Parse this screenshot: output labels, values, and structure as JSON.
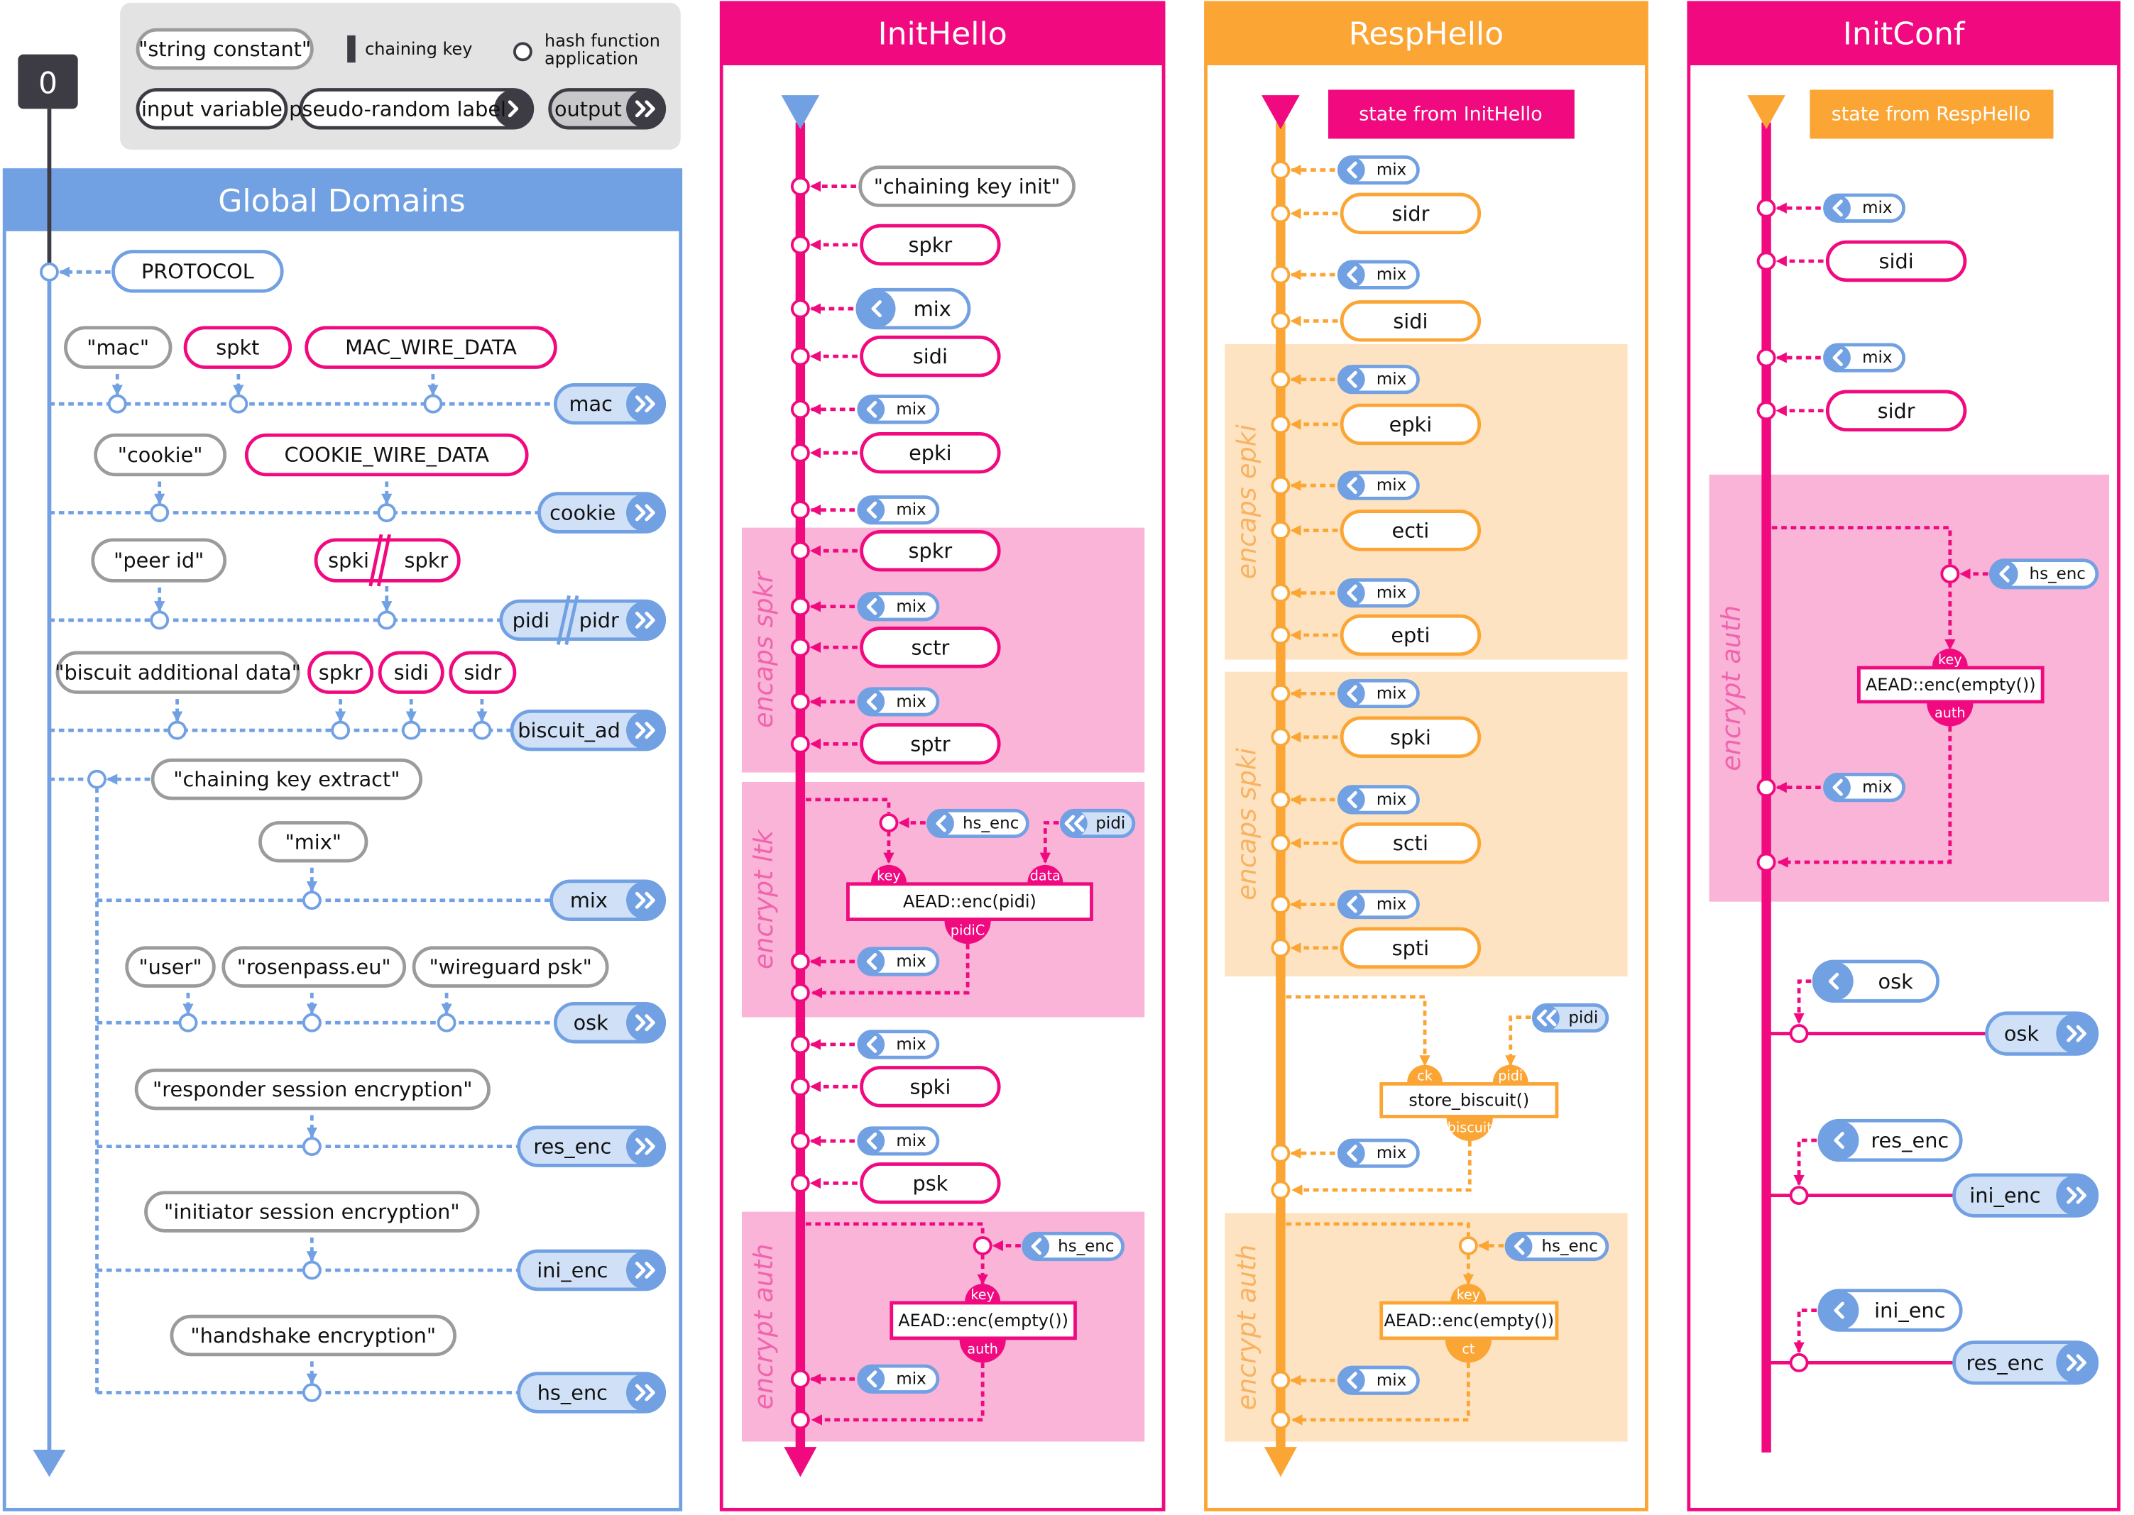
{
  "colors": {
    "global": "#71a0e3",
    "global_light": "#cfe0f7",
    "init": "#f0097f",
    "init_band": "#f9b4d8",
    "init_band_text": "#f064ae",
    "resp": "#fba535",
    "resp_band": "#fde3c1",
    "resp_band_text": "#f8b260",
    "constant": "#9b9b9b",
    "dark": "#3d3c44",
    "legend_bg": "#e3e3e4"
  },
  "legend": {
    "string_constant": "\"string constant\"",
    "chaining_key": "chaining key",
    "hash_line1": "hash function",
    "hash_line2": "application",
    "input_variable": "input variable",
    "pseudo_random_label": "pseudo-random label",
    "output": "output"
  },
  "step_badge": "0",
  "global": {
    "title": "Global Domains",
    "protocol": "PROTOCOL",
    "rows": [
      {
        "inputs": [
          "\"mac\"",
          "spkt",
          "MAC_WIRE_DATA"
        ],
        "output": "mac"
      },
      {
        "inputs": [
          "\"cookie\"",
          "COOKIE_WIRE_DATA"
        ],
        "output": "cookie"
      },
      {
        "inputs": [
          "\"peer id\"",
          [
            "spki",
            "spkr"
          ]
        ],
        "output": [
          "pidi",
          "pidr"
        ]
      },
      {
        "inputs": [
          "\"biscuit additional data\"",
          "spkr",
          "sidi",
          "sidr"
        ],
        "output": "biscuit_ad"
      }
    ],
    "extract": "\"chaining key extract\"",
    "derived": [
      {
        "inputs": [
          "\"mix\""
        ],
        "output": "mix"
      },
      {
        "inputs": [
          "\"user\"",
          "\"rosenpass.eu\"",
          "\"wireguard psk\""
        ],
        "output": "osk"
      },
      {
        "inputs": [
          "\"responder session encryption\""
        ],
        "output": "res_enc"
      },
      {
        "inputs": [
          "\"initiator session encryption\""
        ],
        "output": "ini_enc"
      },
      {
        "inputs": [
          "\"handshake encryption\""
        ],
        "output": "hs_enc"
      }
    ]
  },
  "init_hello": {
    "title": "InitHello",
    "steps": [
      "\"chaining key init\"",
      "spkr",
      "mix",
      "sidi",
      "mix",
      "epki",
      "mix",
      "spkr",
      "mix",
      "sctr",
      "mix",
      "sptr",
      "mix",
      "mix",
      "spki",
      "mix",
      "psk",
      "mix"
    ],
    "bands": [
      "encaps spkr",
      "encrypt ltk",
      "encrypt auth"
    ],
    "ltk": {
      "key_source": "hs_enc",
      "data_source": "pidi",
      "fn": "AEAD::enc(pidi)",
      "port_key": "key",
      "port_data": "data",
      "result": "pidiC"
    },
    "auth": {
      "key_source": "hs_enc",
      "fn": "AEAD::enc(empty())",
      "port_key": "key",
      "result": "auth"
    }
  },
  "resp_hello": {
    "title": "RespHello",
    "state": "state from InitHello",
    "steps": [
      "mix",
      "sidr",
      "mix",
      "sidi",
      "mix",
      "epki",
      "mix",
      "ecti",
      "mix",
      "epti",
      "mix",
      "spki",
      "mix",
      "scti",
      "mix",
      "spti",
      "mix",
      "mix"
    ],
    "bands": [
      "encaps epki",
      "encaps spki",
      "encrypt auth"
    ],
    "biscuit": {
      "data_source": "pidi",
      "fn": "store_biscuit()",
      "port_ck": "ck",
      "port_pidi": "pidi",
      "result": "biscuit"
    },
    "auth": {
      "key_source": "hs_enc",
      "fn": "AEAD::enc(empty())",
      "port_key": "key",
      "result": "ct"
    }
  },
  "init_conf": {
    "title": "InitConf",
    "state": "state from RespHello",
    "steps": [
      "mix",
      "sidi",
      "mix",
      "sidr",
      "mix"
    ],
    "bands": [
      "encrypt auth"
    ],
    "auth": {
      "key_source": "hs_enc",
      "fn": "AEAD::enc(empty())",
      "port_key": "key",
      "result": "auth"
    },
    "outputs": [
      {
        "source": "osk",
        "output": "osk"
      },
      {
        "source": "res_enc",
        "output": "ini_enc"
      },
      {
        "source": "ini_enc",
        "output": "res_enc"
      }
    ]
  }
}
